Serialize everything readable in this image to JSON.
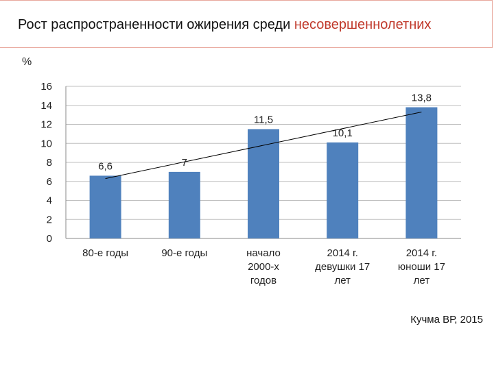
{
  "slide": {
    "title_part1": "Рост распространенности ожирения среди ",
    "title_part2": "несовершеннолетних",
    "unit_label": "%",
    "credit": "Кучма ВР, 2015"
  },
  "colors": {
    "bar": "#4f81bd",
    "title_highlight": "#c0392b",
    "header_border": "#e8a79c"
  },
  "chart_data": {
    "type": "bar",
    "categories": [
      [
        "80-е годы"
      ],
      [
        "90-е годы"
      ],
      [
        "начало",
        "2000-х",
        "годов"
      ],
      [
        "2014 г.",
        "девушки 17",
        "лет"
      ],
      [
        "2014 г.",
        "юноши 17",
        "лет"
      ]
    ],
    "values": [
      6.6,
      7,
      11.5,
      10.1,
      13.8
    ],
    "data_labels": [
      "6,6",
      "7",
      "11,5",
      "10,1",
      "13,8"
    ],
    "ylim": [
      0,
      16
    ],
    "yticks": [
      0,
      2,
      4,
      6,
      8,
      10,
      12,
      14,
      16
    ],
    "grid": true,
    "trendline": "linear"
  }
}
